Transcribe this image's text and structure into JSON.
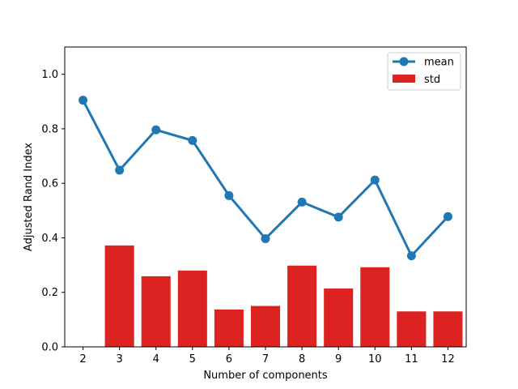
{
  "chart_data": {
    "type": "bar+line",
    "xlabel": "Number of components",
    "ylabel": "Adjusted Rand Index",
    "x": [
      2,
      3,
      4,
      5,
      6,
      7,
      8,
      9,
      10,
      11,
      12
    ],
    "xlim": [
      1.5,
      12.5
    ],
    "ylim": [
      0,
      1.1
    ],
    "yticks": [
      0.0,
      0.2,
      0.4,
      0.6,
      0.8,
      1.0
    ],
    "ytick_labels": [
      "0.0",
      "0.2",
      "0.4",
      "0.6",
      "0.8",
      "1.0"
    ],
    "grid": false,
    "legend_placement": "top-right",
    "series": [
      {
        "name": "mean",
        "kind": "line",
        "color": "#1f77b4",
        "values": [
          0.905,
          0.648,
          0.796,
          0.757,
          0.555,
          0.397,
          0.531,
          0.476,
          0.612,
          0.334,
          0.478
        ]
      },
      {
        "name": "std",
        "kind": "bar",
        "color": "#dd2222",
        "values": [
          0.0,
          0.372,
          0.259,
          0.28,
          0.137,
          0.15,
          0.298,
          0.214,
          0.292,
          0.13,
          0.13
        ]
      }
    ]
  }
}
